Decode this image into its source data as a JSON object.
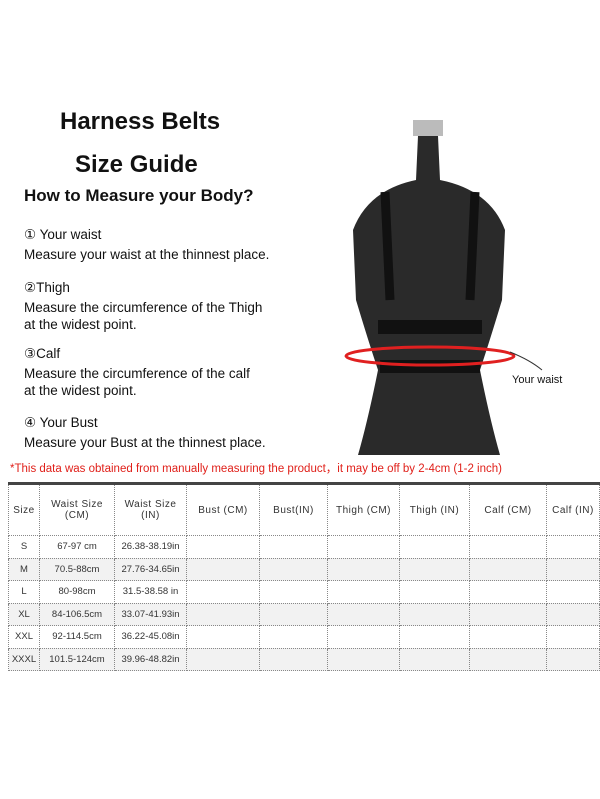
{
  "title_line1": "Harness Belts",
  "title_line2": "Size Guide",
  "subtitle": "How to Measure your Body?",
  "steps": [
    {
      "heading": "① Your waist",
      "text": "Measure your waist at the thinnest place."
    },
    {
      "heading": "②Thigh",
      "text": "Measure the circumference of the Thigh at the widest point."
    },
    {
      "heading": "③Calf",
      "text": "Measure the circumference of the calf at the widest point."
    },
    {
      "heading": "④ Your Bust",
      "text": "Measure your Bust at the thinnest place."
    }
  ],
  "waist_label": "Your waist",
  "note": "*This data was obtained from manually measuring the product，it may be off by 2-4cm (1-2 inch)",
  "table": {
    "headers": [
      "Size",
      "Waist Size (CM)",
      "Waist Size (IN)",
      "Bust (CM)",
      "Bust(IN)",
      "Thigh (CM)",
      "Thigh (IN)",
      "Calf (CM)",
      "Calf (IN)"
    ],
    "rows": [
      [
        "S",
        "67-97 cm",
        "26.38-38.19in",
        "",
        "",
        "",
        "",
        "",
        ""
      ],
      [
        "M",
        "70.5-88cm",
        "27.76-34.65in",
        "",
        "",
        "",
        "",
        "",
        ""
      ],
      [
        "L",
        "80-98cm",
        "31.5-38.58 in",
        "",
        "",
        "",
        "",
        "",
        ""
      ],
      [
        "XL",
        "84-106.5cm",
        "33.07-41.93in",
        "",
        "",
        "",
        "",
        "",
        ""
      ],
      [
        "XXL",
        "92-114.5cm",
        "36.22-45.08in",
        "",
        "",
        "",
        "",
        "",
        ""
      ],
      [
        "XXXL",
        "101.5-124cm",
        "39.96-48.82in",
        "",
        "",
        "",
        "",
        "",
        ""
      ]
    ]
  },
  "colors": {
    "note": "#e0201a",
    "waist_ring": "#e02020",
    "mannequin": "#2a2a2a"
  }
}
